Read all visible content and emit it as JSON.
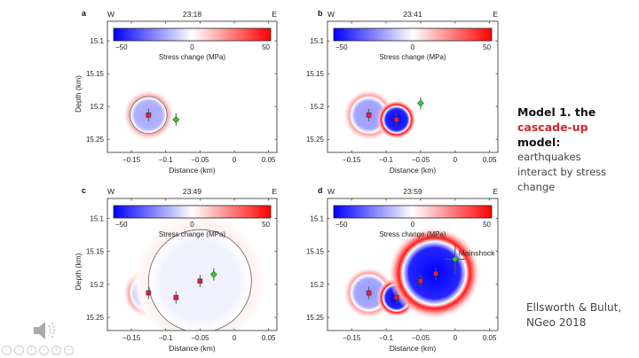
{
  "slide": {
    "model_title_line1": "Model 1. the",
    "model_title_highlight": "cascade-up",
    "model_title_line3": "model:",
    "model_desc_lines": [
      "earthquakes",
      "interact by stress",
      "change"
    ],
    "citation_lines": [
      "Ellsworth & Bulut,",
      "NGeo 2018"
    ],
    "colors": {
      "highlight": "#d0282a",
      "stress_negative": "#0000ff",
      "stress_positive": "#ff0000",
      "event": "#e0203a",
      "mainshock": "#33cc33"
    },
    "player_controls": [
      "previous",
      "next",
      "pen",
      "slides",
      "zoom",
      "more"
    ]
  },
  "chart_data": [
    {
      "panel": "a",
      "time": "23:18",
      "type": "heatmap",
      "west_label": "W",
      "east_label": "E",
      "xlabel": "Distance (km)",
      "ylabel": "Depth (km)",
      "xlim": [
        -0.185,
        0.062
      ],
      "ylim": [
        15.07,
        15.27
      ],
      "xticks": [
        -0.15,
        -0.1,
        -0.05,
        0,
        0.05
      ],
      "xtick_labels": [
        "−0.15",
        "−0.1",
        "−0.05",
        "0",
        "0.05"
      ],
      "yticks": [
        15.1,
        15.15,
        15.2,
        15.25
      ],
      "ytick_labels": [
        "15.1",
        "15.15",
        "15.2",
        "15.25"
      ],
      "colorbar": {
        "label": "Stress change (MPa)",
        "min": -50,
        "mid": 0,
        "max": 50,
        "tick_labels": [
          "−50",
          "0",
          "50"
        ]
      },
      "sources": [
        {
          "x": -0.125,
          "y": 15.213,
          "r": 0.025,
          "strength": 0.35
        }
      ],
      "rupture_circles": [
        {
          "x": -0.125,
          "y": 15.213,
          "r": 0.027
        }
      ],
      "events": [
        {
          "x": -0.125,
          "y": 15.213,
          "kind": "foreshock"
        }
      ],
      "next_event": {
        "x": -0.085,
        "y": 15.22,
        "kind": "next"
      },
      "annotation": ""
    },
    {
      "panel": "b",
      "time": "23:41",
      "type": "heatmap",
      "west_label": "W",
      "east_label": "E",
      "xlabel": "Distance (km)",
      "ylabel": "",
      "xlim": [
        -0.185,
        0.062
      ],
      "ylim": [
        15.07,
        15.27
      ],
      "xticks": [
        -0.15,
        -0.1,
        -0.05,
        0,
        0.05
      ],
      "xtick_labels": [
        "−0.15",
        "−0.1",
        "−0.05",
        "0",
        "0.05"
      ],
      "yticks": [
        15.1,
        15.15,
        15.2,
        15.25
      ],
      "ytick_labels": [
        "15.1",
        "15.15",
        "15.2",
        "15.25"
      ],
      "colorbar": {
        "label": "Stress change (MPa)",
        "min": -50,
        "mid": 0,
        "max": 50,
        "tick_labels": [
          "−50",
          "0",
          "50"
        ]
      },
      "sources": [
        {
          "x": -0.125,
          "y": 15.213,
          "r": 0.025,
          "strength": 0.4
        },
        {
          "x": -0.085,
          "y": 15.22,
          "r": 0.019,
          "strength": 1.0
        }
      ],
      "rupture_circles": [],
      "events": [
        {
          "x": -0.125,
          "y": 15.213,
          "kind": "foreshock"
        },
        {
          "x": -0.085,
          "y": 15.22,
          "kind": "foreshock"
        }
      ],
      "next_event": {
        "x": -0.05,
        "y": 15.195,
        "kind": "next"
      },
      "annotation": ""
    },
    {
      "panel": "c",
      "time": "23:49",
      "type": "heatmap",
      "west_label": "W",
      "east_label": "E",
      "xlabel": "Distance (km)",
      "ylabel": "Depth (km)",
      "xlim": [
        -0.185,
        0.062
      ],
      "ylim": [
        15.07,
        15.27
      ],
      "xticks": [
        -0.15,
        -0.1,
        -0.05,
        0,
        0.05
      ],
      "xtick_labels": [
        "−0.15",
        "−0.1",
        "−0.05",
        "0",
        "0.05"
      ],
      "yticks": [
        15.1,
        15.15,
        15.2,
        15.25
      ],
      "ytick_labels": [
        "15.1",
        "15.15",
        "15.2",
        "15.25"
      ],
      "colorbar": {
        "label": "Stress change (MPa)",
        "min": -50,
        "mid": 0,
        "max": 50,
        "tick_labels": [
          "−50",
          "0",
          "50"
        ]
      },
      "sources": [
        {
          "x": -0.125,
          "y": 15.213,
          "r": 0.025,
          "strength": 0.4
        },
        {
          "x": -0.085,
          "y": 15.22,
          "r": 0.019,
          "strength": 1.0
        },
        {
          "x": -0.05,
          "y": 15.195,
          "r": 0.07,
          "strength": 0.06
        }
      ],
      "rupture_circles": [
        {
          "x": -0.05,
          "y": 15.195,
          "r": 0.075
        }
      ],
      "events": [
        {
          "x": -0.125,
          "y": 15.213,
          "kind": "foreshock"
        },
        {
          "x": -0.085,
          "y": 15.22,
          "kind": "foreshock"
        },
        {
          "x": -0.05,
          "y": 15.195,
          "kind": "foreshock"
        }
      ],
      "next_event": {
        "x": -0.03,
        "y": 15.185,
        "kind": "next"
      },
      "annotation": ""
    },
    {
      "panel": "d",
      "time": "23:59",
      "type": "heatmap",
      "west_label": "W",
      "east_label": "E",
      "xlabel": "Distance (km)",
      "ylabel": "",
      "xlim": [
        -0.185,
        0.062
      ],
      "ylim": [
        15.07,
        15.27
      ],
      "xticks": [
        -0.15,
        -0.1,
        -0.05,
        0,
        0.05
      ],
      "xtick_labels": [
        "−0.15",
        "−0.1",
        "−0.05",
        "0",
        "0.05"
      ],
      "yticks": [
        15.1,
        15.15,
        15.2,
        15.25
      ],
      "ytick_labels": [
        "15.1",
        "15.15",
        "15.2",
        "15.25"
      ],
      "colorbar": {
        "label": "Stress change (MPa)",
        "min": -50,
        "mid": 0,
        "max": 50,
        "tick_labels": [
          "−50",
          "0",
          "50"
        ]
      },
      "sources": [
        {
          "x": -0.125,
          "y": 15.213,
          "r": 0.025,
          "strength": 0.4
        },
        {
          "x": -0.085,
          "y": 15.22,
          "r": 0.019,
          "strength": 1.0
        },
        {
          "x": -0.03,
          "y": 15.183,
          "r": 0.045,
          "strength": 1.0
        }
      ],
      "rupture_circles": [],
      "events": [
        {
          "x": -0.125,
          "y": 15.213,
          "kind": "foreshock"
        },
        {
          "x": -0.085,
          "y": 15.22,
          "kind": "foreshock"
        },
        {
          "x": -0.05,
          "y": 15.195,
          "kind": "foreshock"
        },
        {
          "x": -0.028,
          "y": 15.184,
          "kind": "foreshock"
        }
      ],
      "next_event": {
        "x": 0.0,
        "y": 15.162,
        "kind": "mainshock"
      },
      "annotation": "Mainshock"
    }
  ]
}
